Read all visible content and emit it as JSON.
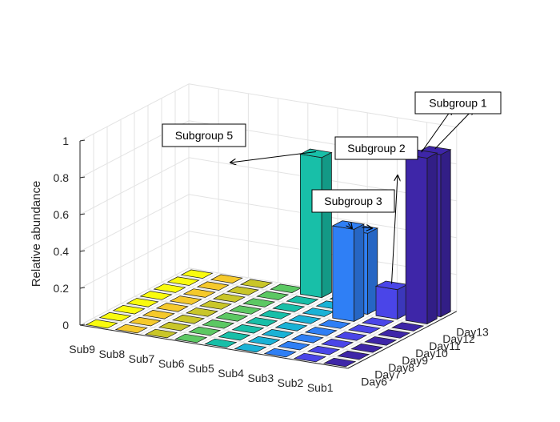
{
  "chart_data": {
    "type": "bar3d",
    "x_categories": [
      "Sub9",
      "Sub8",
      "Sub7",
      "Sub6",
      "Sub5",
      "Sub4",
      "Sub3",
      "Sub2",
      "Sub1"
    ],
    "y_categories": [
      "Day6",
      "Day7",
      "Day8",
      "Day9",
      "Day10",
      "Day11",
      "Day12",
      "Day13"
    ],
    "zlabel": "Relative abundance",
    "zlim": [
      0,
      1
    ],
    "zticks": [
      "0",
      "0.2",
      "0.4",
      "0.6",
      "0.8",
      "1"
    ],
    "grid": true,
    "values": [
      [
        0,
        0,
        0,
        0,
        0,
        0,
        0,
        0
      ],
      [
        0,
        0,
        0,
        0,
        0,
        0,
        0,
        0
      ],
      [
        0,
        0,
        0,
        0,
        0,
        0,
        0,
        0
      ],
      [
        0,
        0,
        0,
        0,
        0,
        0,
        0,
        0
      ],
      [
        0,
        0,
        0,
        0,
        0,
        0,
        0,
        0.76
      ],
      [
        0,
        0,
        0,
        0,
        0,
        0,
        0,
        0
      ],
      [
        0,
        0,
        0,
        0,
        0,
        0.5,
        0.44,
        0
      ],
      [
        0,
        0,
        0,
        0,
        0,
        0,
        0.16,
        0
      ],
      [
        0,
        0,
        0,
        0,
        0,
        0,
        0.9,
        0.88
      ]
    ],
    "series_colors": [
      "#f9fb0e",
      "#f5c92b",
      "#c9c629",
      "#5cc863",
      "#18bfa8",
      "#19b2d6",
      "#2f7ff5",
      "#4a45e8",
      "#3e26a8"
    ],
    "annotations": [
      {
        "text": "Subgroup 1",
        "targets": [
          [
            8,
            6
          ],
          [
            8,
            7
          ]
        ]
      },
      {
        "text": "Subgroup 2",
        "targets": [
          [
            7,
            6
          ]
        ]
      },
      {
        "text": "Subgroup 3",
        "targets": [
          [
            6,
            5
          ],
          [
            6,
            6
          ]
        ]
      },
      {
        "text": "Subgroup 5",
        "targets": [
          [
            4,
            7
          ]
        ]
      }
    ]
  }
}
